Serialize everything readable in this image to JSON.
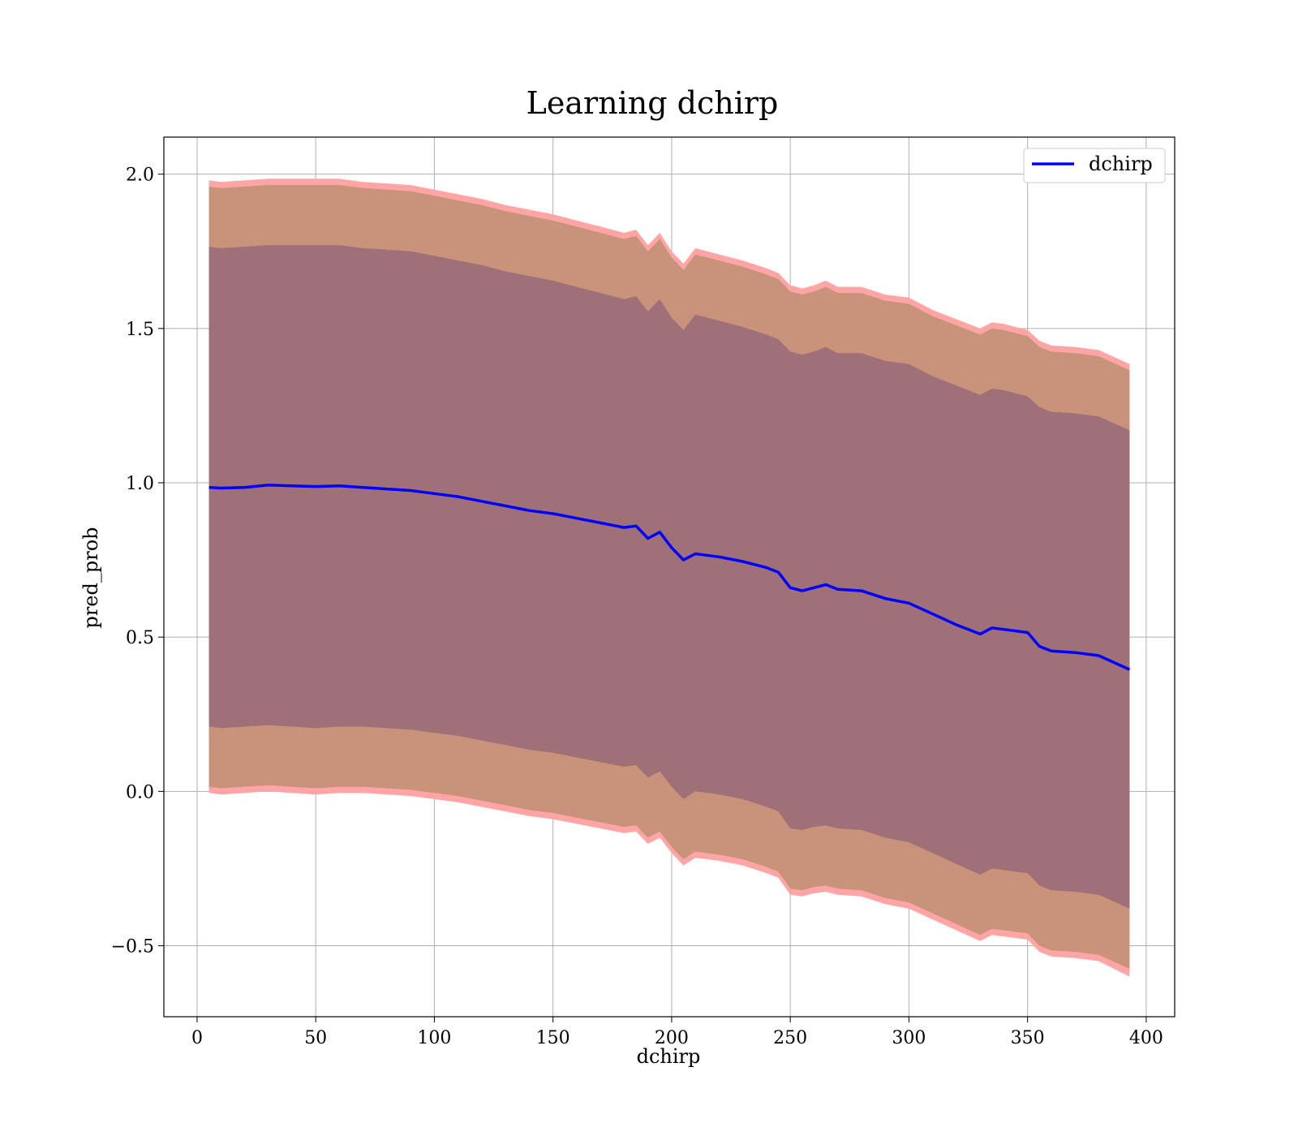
{
  "chart_data": {
    "type": "line",
    "title": "Learning dchirp",
    "xlabel": "dchirp",
    "ylabel": "pred_prob",
    "xlim": [
      -14,
      412
    ],
    "ylim": [
      -0.73,
      2.12
    ],
    "x_ticks": [
      0,
      50,
      100,
      150,
      200,
      250,
      300,
      350,
      400
    ],
    "x_tick_labels": [
      "0",
      "50",
      "100",
      "150",
      "200",
      "250",
      "300",
      "350",
      "400"
    ],
    "y_ticks": [
      -0.5,
      0.0,
      0.5,
      1.0,
      1.5,
      2.0
    ],
    "y_tick_labels": [
      "−0.5",
      "0.0",
      "0.5",
      "1.0",
      "1.5",
      "2.0"
    ],
    "grid": true,
    "legend_position": "top-right",
    "series": [
      {
        "name": "dchirp",
        "type": "line",
        "color": "#0000ff",
        "x": [
          5,
          10,
          20,
          30,
          40,
          50,
          60,
          70,
          80,
          90,
          100,
          110,
          120,
          130,
          140,
          150,
          160,
          170,
          180,
          185,
          190,
          195,
          200,
          205,
          210,
          220,
          230,
          240,
          245,
          250,
          255,
          260,
          265,
          270,
          280,
          290,
          300,
          310,
          320,
          330,
          335,
          340,
          350,
          355,
          360,
          370,
          380,
          393
        ],
        "y": [
          0.985,
          0.983,
          0.985,
          0.993,
          0.99,
          0.988,
          0.99,
          0.985,
          0.98,
          0.975,
          0.965,
          0.955,
          0.94,
          0.925,
          0.91,
          0.9,
          0.885,
          0.87,
          0.855,
          0.86,
          0.82,
          0.84,
          0.79,
          0.75,
          0.77,
          0.76,
          0.745,
          0.725,
          0.71,
          0.66,
          0.65,
          0.66,
          0.67,
          0.655,
          0.65,
          0.625,
          0.61,
          0.575,
          0.54,
          0.51,
          0.53,
          0.525,
          0.515,
          0.47,
          0.455,
          0.45,
          0.44,
          0.395
        ]
      }
    ],
    "bands": [
      {
        "role": "outer band",
        "fill": "#ffa5a5",
        "x": [
          5,
          10,
          20,
          30,
          40,
          50,
          60,
          70,
          80,
          90,
          100,
          110,
          120,
          130,
          140,
          150,
          160,
          170,
          180,
          185,
          190,
          195,
          200,
          205,
          210,
          220,
          230,
          240,
          245,
          250,
          255,
          260,
          265,
          270,
          280,
          290,
          300,
          310,
          320,
          330,
          335,
          340,
          350,
          355,
          360,
          370,
          380,
          393
        ],
        "upper": [
          1.98,
          1.975,
          1.98,
          1.985,
          1.985,
          1.985,
          1.985,
          1.975,
          1.97,
          1.965,
          1.95,
          1.935,
          1.92,
          1.9,
          1.885,
          1.87,
          1.85,
          1.83,
          1.81,
          1.82,
          1.77,
          1.81,
          1.75,
          1.71,
          1.76,
          1.74,
          1.72,
          1.695,
          1.68,
          1.64,
          1.63,
          1.64,
          1.655,
          1.635,
          1.635,
          1.61,
          1.6,
          1.56,
          1.53,
          1.5,
          1.52,
          1.515,
          1.495,
          1.46,
          1.445,
          1.44,
          1.43,
          1.385
        ],
        "lower": [
          -0.005,
          -0.01,
          -0.005,
          0.0,
          -0.005,
          -0.01,
          -0.005,
          -0.005,
          -0.01,
          -0.015,
          -0.025,
          -0.035,
          -0.05,
          -0.065,
          -0.08,
          -0.09,
          -0.105,
          -0.12,
          -0.135,
          -0.13,
          -0.17,
          -0.15,
          -0.2,
          -0.24,
          -0.215,
          -0.225,
          -0.24,
          -0.265,
          -0.28,
          -0.335,
          -0.34,
          -0.33,
          -0.325,
          -0.335,
          -0.34,
          -0.365,
          -0.38,
          -0.415,
          -0.45,
          -0.485,
          -0.465,
          -0.47,
          -0.48,
          -0.52,
          -0.535,
          -0.54,
          -0.55,
          -0.6
        ]
      },
      {
        "role": "middle band",
        "fill": "#c8937a",
        "x": [
          5,
          10,
          20,
          30,
          40,
          50,
          60,
          70,
          80,
          90,
          100,
          110,
          120,
          130,
          140,
          150,
          160,
          170,
          180,
          185,
          190,
          195,
          200,
          205,
          210,
          220,
          230,
          240,
          245,
          250,
          255,
          260,
          265,
          270,
          280,
          290,
          300,
          310,
          320,
          330,
          335,
          340,
          350,
          355,
          360,
          370,
          380,
          393
        ],
        "upper": [
          1.96,
          1.955,
          1.96,
          1.965,
          1.965,
          1.965,
          1.965,
          1.955,
          1.95,
          1.945,
          1.93,
          1.915,
          1.9,
          1.88,
          1.865,
          1.85,
          1.83,
          1.81,
          1.79,
          1.8,
          1.75,
          1.79,
          1.73,
          1.69,
          1.74,
          1.72,
          1.7,
          1.675,
          1.66,
          1.62,
          1.61,
          1.62,
          1.635,
          1.615,
          1.615,
          1.59,
          1.58,
          1.54,
          1.51,
          1.48,
          1.5,
          1.495,
          1.475,
          1.44,
          1.425,
          1.42,
          1.41,
          1.365
        ],
        "lower": [
          0.015,
          0.01,
          0.015,
          0.02,
          0.015,
          0.01,
          0.015,
          0.015,
          0.01,
          0.005,
          -0.005,
          -0.015,
          -0.03,
          -0.045,
          -0.06,
          -0.07,
          -0.085,
          -0.1,
          -0.115,
          -0.11,
          -0.15,
          -0.13,
          -0.18,
          -0.22,
          -0.195,
          -0.205,
          -0.22,
          -0.245,
          -0.26,
          -0.315,
          -0.32,
          -0.31,
          -0.305,
          -0.315,
          -0.32,
          -0.345,
          -0.36,
          -0.395,
          -0.43,
          -0.465,
          -0.445,
          -0.45,
          -0.46,
          -0.5,
          -0.515,
          -0.52,
          -0.53,
          -0.575
        ]
      },
      {
        "role": "inner band",
        "fill": "#a07079",
        "x": [
          5,
          10,
          20,
          30,
          40,
          50,
          60,
          70,
          80,
          90,
          100,
          110,
          120,
          130,
          140,
          150,
          160,
          170,
          180,
          185,
          190,
          195,
          200,
          205,
          210,
          220,
          230,
          240,
          245,
          250,
          255,
          260,
          265,
          270,
          280,
          290,
          300,
          310,
          320,
          330,
          335,
          340,
          350,
          355,
          360,
          370,
          380,
          393
        ],
        "upper": [
          1.765,
          1.76,
          1.765,
          1.77,
          1.77,
          1.77,
          1.77,
          1.76,
          1.755,
          1.75,
          1.735,
          1.72,
          1.705,
          1.685,
          1.67,
          1.655,
          1.635,
          1.615,
          1.595,
          1.605,
          1.555,
          1.595,
          1.535,
          1.495,
          1.545,
          1.525,
          1.505,
          1.48,
          1.465,
          1.425,
          1.415,
          1.425,
          1.44,
          1.42,
          1.42,
          1.395,
          1.385,
          1.345,
          1.315,
          1.285,
          1.305,
          1.3,
          1.28,
          1.245,
          1.23,
          1.225,
          1.215,
          1.17
        ],
        "lower": [
          0.21,
          0.205,
          0.21,
          0.215,
          0.21,
          0.205,
          0.21,
          0.21,
          0.205,
          0.2,
          0.19,
          0.18,
          0.165,
          0.15,
          0.135,
          0.125,
          0.11,
          0.095,
          0.08,
          0.085,
          0.045,
          0.065,
          0.015,
          -0.025,
          0.0,
          -0.01,
          -0.025,
          -0.05,
          -0.065,
          -0.12,
          -0.125,
          -0.115,
          -0.11,
          -0.12,
          -0.125,
          -0.15,
          -0.165,
          -0.2,
          -0.235,
          -0.27,
          -0.25,
          -0.255,
          -0.265,
          -0.305,
          -0.32,
          -0.325,
          -0.335,
          -0.38
        ]
      }
    ]
  }
}
